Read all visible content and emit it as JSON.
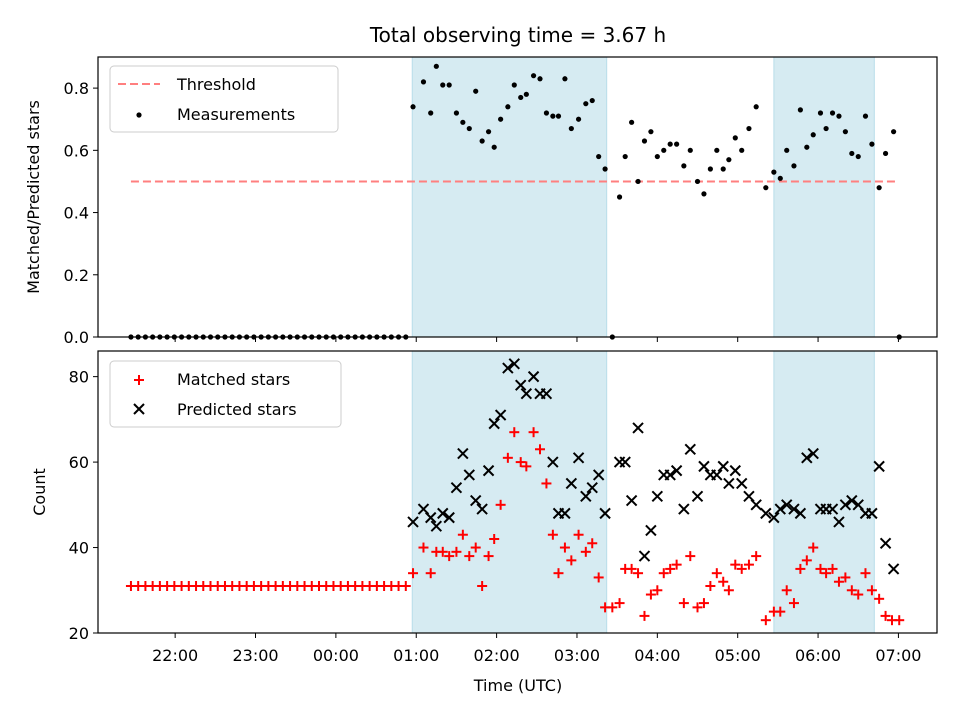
{
  "chart_data": [
    {
      "type": "scatter",
      "title": "Total observing time = 3.67 h",
      "ylabel": "Matched/Predicted stars",
      "xlabel": "",
      "ylim": [
        0,
        0.9
      ],
      "yticks": [
        "0.0",
        "0.2",
        "0.4",
        "0.6",
        "0.8"
      ],
      "ytick_values": [
        0,
        0.2,
        0.4,
        0.6,
        0.8
      ],
      "x_unit": "hours after 21:00 UTC",
      "xlim": [
        0.04,
        10.48
      ],
      "legend": {
        "placement": "top-left",
        "entries": [
          "Threshold",
          "Measurements"
        ]
      },
      "shaded_intervals_hours": [
        [
          3.95,
          6.37
        ],
        [
          8.45,
          9.7
        ]
      ],
      "threshold": {
        "name": "Threshold",
        "value": 0.5,
        "x_range": [
          0.45,
          9.97
        ],
        "color": "#ff7f7f"
      },
      "measurements": {
        "name": "Measurements",
        "color": "#000000",
        "zero_times": [
          0.45,
          0.54,
          0.63,
          0.72,
          0.81,
          0.9,
          0.99,
          1.08,
          1.17,
          1.26,
          1.35,
          1.44,
          1.53,
          1.62,
          1.71,
          1.8,
          1.89,
          1.98,
          2.07,
          2.16,
          2.25,
          2.34,
          2.43,
          2.52,
          2.61,
          2.7,
          2.79,
          2.88,
          2.97,
          3.06,
          3.15,
          3.24,
          3.33,
          3.42,
          3.51,
          3.6,
          3.69,
          3.78,
          3.87,
          6.44,
          10.01
        ],
        "points": [
          [
            3.96,
            0.74
          ],
          [
            4.09,
            0.82
          ],
          [
            4.18,
            0.72
          ],
          [
            4.25,
            0.87
          ],
          [
            4.33,
            0.81
          ],
          [
            4.41,
            0.81
          ],
          [
            4.5,
            0.72
          ],
          [
            4.58,
            0.69
          ],
          [
            4.66,
            0.67
          ],
          [
            4.74,
            0.79
          ],
          [
            4.82,
            0.63
          ],
          [
            4.9,
            0.66
          ],
          [
            4.97,
            0.61
          ],
          [
            5.05,
            0.7
          ],
          [
            5.14,
            0.74
          ],
          [
            5.22,
            0.81
          ],
          [
            5.3,
            0.77
          ],
          [
            5.37,
            0.78
          ],
          [
            5.46,
            0.84
          ],
          [
            5.54,
            0.83
          ],
          [
            5.62,
            0.72
          ],
          [
            5.7,
            0.71
          ],
          [
            5.77,
            0.71
          ],
          [
            5.85,
            0.83
          ],
          [
            5.93,
            0.67
          ],
          [
            6.02,
            0.7
          ],
          [
            6.11,
            0.75
          ],
          [
            6.19,
            0.76
          ],
          [
            6.27,
            0.58
          ],
          [
            6.35,
            0.54
          ],
          [
            6.53,
            0.45
          ],
          [
            6.6,
            0.58
          ],
          [
            6.68,
            0.69
          ],
          [
            6.76,
            0.5
          ],
          [
            6.84,
            0.63
          ],
          [
            6.92,
            0.66
          ],
          [
            7.0,
            0.58
          ],
          [
            7.08,
            0.6
          ],
          [
            7.16,
            0.62
          ],
          [
            7.24,
            0.62
          ],
          [
            7.33,
            0.55
          ],
          [
            7.41,
            0.6
          ],
          [
            7.5,
            0.5
          ],
          [
            7.58,
            0.46
          ],
          [
            7.66,
            0.54
          ],
          [
            7.74,
            0.6
          ],
          [
            7.82,
            0.54
          ],
          [
            7.89,
            0.57
          ],
          [
            7.97,
            0.64
          ],
          [
            8.05,
            0.6
          ],
          [
            8.14,
            0.67
          ],
          [
            8.23,
            0.74
          ],
          [
            8.35,
            0.48
          ],
          [
            8.45,
            0.53
          ],
          [
            8.53,
            0.51
          ],
          [
            8.61,
            0.6
          ],
          [
            8.7,
            0.55
          ],
          [
            8.78,
            0.73
          ],
          [
            8.86,
            0.61
          ],
          [
            8.94,
            0.65
          ],
          [
            9.03,
            0.72
          ],
          [
            9.1,
            0.67
          ],
          [
            9.18,
            0.72
          ],
          [
            9.26,
            0.71
          ],
          [
            9.34,
            0.66
          ],
          [
            9.42,
            0.59
          ],
          [
            9.5,
            0.58
          ],
          [
            9.59,
            0.71
          ],
          [
            9.67,
            0.62
          ],
          [
            9.76,
            0.48
          ],
          [
            9.84,
            0.59
          ],
          [
            9.94,
            0.66
          ]
        ]
      }
    },
    {
      "type": "scatter",
      "title": "",
      "ylabel": "Count",
      "xlabel": "Time (UTC)",
      "ylim": [
        20,
        86
      ],
      "yticks": [
        "20",
        "40",
        "60",
        "80"
      ],
      "ytick_values": [
        20,
        40,
        60,
        80
      ],
      "x_unit": "hours after 21:00 UTC",
      "xlim": [
        0.04,
        10.48
      ],
      "xticks": [
        "22:00",
        "23:00",
        "00:00",
        "01:00",
        "02:00",
        "03:00",
        "04:00",
        "05:00",
        "06:00",
        "07:00"
      ],
      "xtick_values": [
        1,
        2,
        3,
        4,
        5,
        6,
        7,
        8,
        9,
        10
      ],
      "legend": {
        "placement": "top-left",
        "entries": [
          "Matched stars",
          "Predicted stars"
        ]
      },
      "shaded_intervals_hours": [
        [
          3.95,
          6.37
        ],
        [
          8.45,
          9.7
        ]
      ],
      "series": [
        {
          "name": "Matched stars",
          "marker": "+",
          "color": "#ff0000",
          "constant_value": 31,
          "constant_times": [
            0.45,
            0.54,
            0.63,
            0.72,
            0.81,
            0.9,
            0.99,
            1.08,
            1.17,
            1.26,
            1.35,
            1.44,
            1.53,
            1.62,
            1.71,
            1.8,
            1.89,
            1.98,
            2.07,
            2.16,
            2.25,
            2.34,
            2.43,
            2.52,
            2.61,
            2.7,
            2.79,
            2.88,
            2.97,
            3.06,
            3.15,
            3.24,
            3.33,
            3.42,
            3.51,
            3.6,
            3.69,
            3.78,
            3.87
          ],
          "points": [
            [
              3.96,
              34
            ],
            [
              4.09,
              40
            ],
            [
              4.18,
              34
            ],
            [
              4.25,
              39
            ],
            [
              4.33,
              39
            ],
            [
              4.41,
              38
            ],
            [
              4.5,
              39
            ],
            [
              4.58,
              43
            ],
            [
              4.66,
              38
            ],
            [
              4.74,
              40
            ],
            [
              4.82,
              31
            ],
            [
              4.9,
              38
            ],
            [
              4.97,
              42
            ],
            [
              5.05,
              50
            ],
            [
              5.14,
              61
            ],
            [
              5.22,
              67
            ],
            [
              5.3,
              60
            ],
            [
              5.37,
              59
            ],
            [
              5.46,
              67
            ],
            [
              5.54,
              63
            ],
            [
              5.62,
              55
            ],
            [
              5.7,
              43
            ],
            [
              5.77,
              34
            ],
            [
              5.85,
              40
            ],
            [
              5.93,
              37
            ],
            [
              6.02,
              43
            ],
            [
              6.11,
              39
            ],
            [
              6.19,
              41
            ],
            [
              6.27,
              33
            ],
            [
              6.35,
              26
            ],
            [
              6.44,
              26
            ],
            [
              6.53,
              27
            ],
            [
              6.6,
              35
            ],
            [
              6.68,
              35
            ],
            [
              6.76,
              34
            ],
            [
              6.84,
              24
            ],
            [
              6.92,
              29
            ],
            [
              7.0,
              30
            ],
            [
              7.08,
              34
            ],
            [
              7.16,
              35
            ],
            [
              7.24,
              36
            ],
            [
              7.33,
              27
            ],
            [
              7.41,
              38
            ],
            [
              7.5,
              26
            ],
            [
              7.58,
              27
            ],
            [
              7.66,
              31
            ],
            [
              7.74,
              34
            ],
            [
              7.82,
              32
            ],
            [
              7.89,
              30
            ],
            [
              7.97,
              36
            ],
            [
              8.05,
              35
            ],
            [
              8.14,
              36
            ],
            [
              8.23,
              38
            ],
            [
              8.35,
              23
            ],
            [
              8.45,
              25
            ],
            [
              8.53,
              25
            ],
            [
              8.61,
              30
            ],
            [
              8.7,
              27
            ],
            [
              8.78,
              35
            ],
            [
              8.86,
              37
            ],
            [
              8.94,
              40
            ],
            [
              9.03,
              35
            ],
            [
              9.1,
              34
            ],
            [
              9.18,
              35
            ],
            [
              9.26,
              32
            ],
            [
              9.34,
              33
            ],
            [
              9.42,
              30
            ],
            [
              9.5,
              29
            ],
            [
              9.59,
              34
            ],
            [
              9.67,
              30
            ],
            [
              9.76,
              28
            ],
            [
              9.84,
              24
            ],
            [
              9.92,
              23
            ],
            [
              10.01,
              23
            ]
          ]
        },
        {
          "name": "Predicted stars",
          "marker": "x",
          "color": "#000000",
          "points": [
            [
              3.96,
              46
            ],
            [
              4.09,
              49
            ],
            [
              4.18,
              47
            ],
            [
              4.25,
              45
            ],
            [
              4.33,
              48
            ],
            [
              4.41,
              47
            ],
            [
              4.5,
              54
            ],
            [
              4.58,
              62
            ],
            [
              4.66,
              57
            ],
            [
              4.74,
              51
            ],
            [
              4.82,
              49
            ],
            [
              4.9,
              58
            ],
            [
              4.97,
              69
            ],
            [
              5.05,
              71
            ],
            [
              5.14,
              82
            ],
            [
              5.22,
              83
            ],
            [
              5.3,
              78
            ],
            [
              5.37,
              76
            ],
            [
              5.46,
              80
            ],
            [
              5.54,
              76
            ],
            [
              5.62,
              76
            ],
            [
              5.7,
              60
            ],
            [
              5.77,
              48
            ],
            [
              5.85,
              48
            ],
            [
              5.93,
              55
            ],
            [
              6.02,
              61
            ],
            [
              6.11,
              52
            ],
            [
              6.19,
              54
            ],
            [
              6.27,
              57
            ],
            [
              6.35,
              48
            ],
            [
              6.53,
              60
            ],
            [
              6.6,
              60
            ],
            [
              6.68,
              51
            ],
            [
              6.76,
              68
            ],
            [
              6.84,
              38
            ],
            [
              6.92,
              44
            ],
            [
              7.0,
              52
            ],
            [
              7.08,
              57
            ],
            [
              7.16,
              57
            ],
            [
              7.24,
              58
            ],
            [
              7.33,
              49
            ],
            [
              7.41,
              63
            ],
            [
              7.5,
              52
            ],
            [
              7.58,
              59
            ],
            [
              7.66,
              57
            ],
            [
              7.74,
              57
            ],
            [
              7.82,
              59
            ],
            [
              7.89,
              55
            ],
            [
              7.97,
              58
            ],
            [
              8.05,
              55
            ],
            [
              8.14,
              52
            ],
            [
              8.23,
              50
            ],
            [
              8.35,
              48
            ],
            [
              8.45,
              47
            ],
            [
              8.53,
              49
            ],
            [
              8.61,
              50
            ],
            [
              8.7,
              49
            ],
            [
              8.78,
              48
            ],
            [
              8.86,
              61
            ],
            [
              8.94,
              62
            ],
            [
              9.03,
              49
            ],
            [
              9.1,
              49
            ],
            [
              9.18,
              49
            ],
            [
              9.26,
              46
            ],
            [
              9.34,
              50
            ],
            [
              9.42,
              51
            ],
            [
              9.5,
              50
            ],
            [
              9.59,
              48
            ],
            [
              9.67,
              48
            ],
            [
              9.76,
              59
            ],
            [
              9.84,
              41
            ],
            [
              9.94,
              35
            ]
          ]
        }
      ]
    }
  ]
}
